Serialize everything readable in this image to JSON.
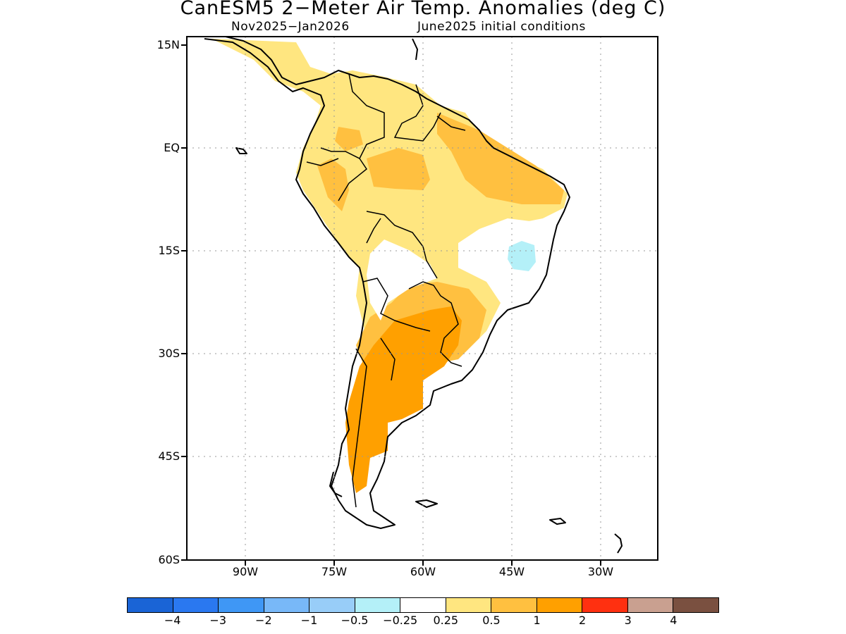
{
  "title": "CanESM5 2−Meter Air Temp. Anomalies (deg C)",
  "subtitle_left": "Nov2025−Jan2026",
  "subtitle_right": "June2025 initial conditions",
  "map": {
    "region": "South America",
    "lat_labels": [
      "15N",
      "EQ",
      "15S",
      "30S",
      "45S",
      "60S"
    ],
    "lon_labels": [
      "90W",
      "75W",
      "60W",
      "45W",
      "30W"
    ],
    "grid": true
  },
  "colorbar": {
    "colors": [
      "#1a64d6",
      "#2a78f0",
      "#3f97f5",
      "#78b8f8",
      "#98cdf8",
      "#b4f0f8",
      "#ffffff",
      "#ffe680",
      "#ffc040",
      "#ffa000",
      "#ff3010",
      "#c9a090",
      "#7a5040"
    ],
    "labels": [
      "−4",
      "−3",
      "−2",
      "−1",
      "−0.5",
      "−0.25",
      "0.25",
      "0.5",
      "1",
      "2",
      "3",
      "4"
    ]
  }
}
